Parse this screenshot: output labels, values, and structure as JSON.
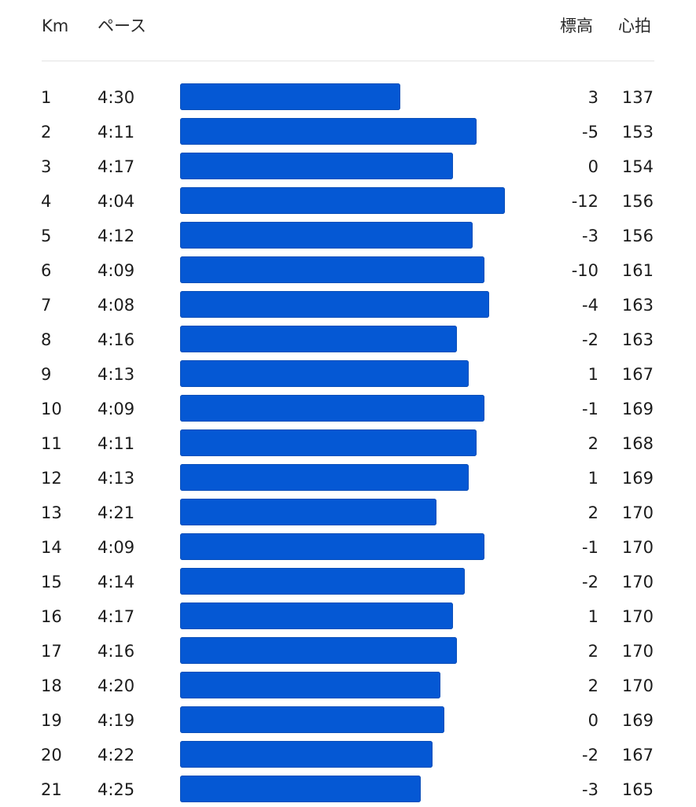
{
  "header": {
    "km_label": "Km",
    "pace_label": "ペース",
    "elevation_label": "標高",
    "heart_rate_label": "心拍"
  },
  "colors": {
    "bar": "#0558d4",
    "text": "#1c1c1c",
    "divider": "#e3e3e3"
  },
  "splits": [
    {
      "km": "1",
      "pace": "4:30",
      "pace_seconds": 270,
      "elevation": "3",
      "heart_rate": "137"
    },
    {
      "km": "2",
      "pace": "4:11",
      "pace_seconds": 251,
      "elevation": "-5",
      "heart_rate": "153"
    },
    {
      "km": "3",
      "pace": "4:17",
      "pace_seconds": 257,
      "elevation": "0",
      "heart_rate": "154"
    },
    {
      "km": "4",
      "pace": "4:04",
      "pace_seconds": 244,
      "elevation": "-12",
      "heart_rate": "156"
    },
    {
      "km": "5",
      "pace": "4:12",
      "pace_seconds": 252,
      "elevation": "-3",
      "heart_rate": "156"
    },
    {
      "km": "6",
      "pace": "4:09",
      "pace_seconds": 249,
      "elevation": "-10",
      "heart_rate": "161"
    },
    {
      "km": "7",
      "pace": "4:08",
      "pace_seconds": 248,
      "elevation": "-4",
      "heart_rate": "163"
    },
    {
      "km": "8",
      "pace": "4:16",
      "pace_seconds": 256,
      "elevation": "-2",
      "heart_rate": "163"
    },
    {
      "km": "9",
      "pace": "4:13",
      "pace_seconds": 253,
      "elevation": "1",
      "heart_rate": "167"
    },
    {
      "km": "10",
      "pace": "4:09",
      "pace_seconds": 249,
      "elevation": "-1",
      "heart_rate": "169"
    },
    {
      "km": "11",
      "pace": "4:11",
      "pace_seconds": 251,
      "elevation": "2",
      "heart_rate": "168"
    },
    {
      "km": "12",
      "pace": "4:13",
      "pace_seconds": 253,
      "elevation": "1",
      "heart_rate": "169"
    },
    {
      "km": "13",
      "pace": "4:21",
      "pace_seconds": 261,
      "elevation": "2",
      "heart_rate": "170"
    },
    {
      "km": "14",
      "pace": "4:09",
      "pace_seconds": 249,
      "elevation": "-1",
      "heart_rate": "170"
    },
    {
      "km": "15",
      "pace": "4:14",
      "pace_seconds": 254,
      "elevation": "-2",
      "heart_rate": "170"
    },
    {
      "km": "16",
      "pace": "4:17",
      "pace_seconds": 257,
      "elevation": "1",
      "heart_rate": "170"
    },
    {
      "km": "17",
      "pace": "4:16",
      "pace_seconds": 256,
      "elevation": "2",
      "heart_rate": "170"
    },
    {
      "km": "18",
      "pace": "4:20",
      "pace_seconds": 260,
      "elevation": "2",
      "heart_rate": "170"
    },
    {
      "km": "19",
      "pace": "4:19",
      "pace_seconds": 259,
      "elevation": "0",
      "heart_rate": "169"
    },
    {
      "km": "20",
      "pace": "4:22",
      "pace_seconds": 262,
      "elevation": "-2",
      "heart_rate": "167"
    },
    {
      "km": "21",
      "pace": "4:25",
      "pace_seconds": 265,
      "elevation": "-3",
      "heart_rate": "165"
    }
  ]
}
